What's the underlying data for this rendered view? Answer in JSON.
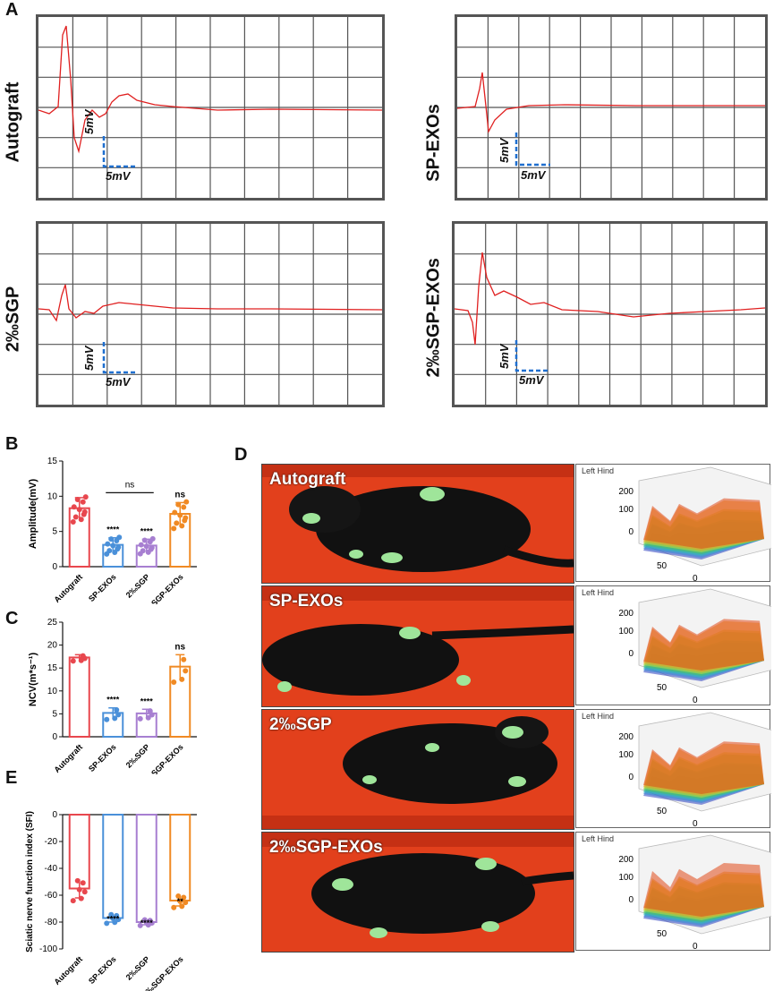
{
  "panels": {
    "A": "A",
    "B": "B",
    "C": "C",
    "D": "D",
    "E": "E"
  },
  "traces": [
    {
      "label": "Autograft",
      "scale_v": "5mV",
      "scale_h": "5mV"
    },
    {
      "label": "SP-EXOs",
      "scale_v": "5mV",
      "scale_h": "5mV"
    },
    {
      "label": "2‰SGP",
      "scale_v": "5mV",
      "scale_h": "5mV"
    },
    {
      "label": "2‰SGP-EXOs",
      "scale_v": "5mV",
      "scale_h": "5mV"
    }
  ],
  "colors": {
    "autograft": "#e8474e",
    "sp_exos": "#4a90d9",
    "sgp": "#a77fd1",
    "sgp_exos": "#f08a24",
    "trace": "#e02020",
    "scalebar": "#1f6fcf"
  },
  "chart_data": [
    {
      "type": "bar",
      "panel": "B",
      "categories": [
        "Autograft",
        "SP-EXOs",
        "2‰SGP",
        "2‰SGP-EXOs"
      ],
      "values": [
        8.3,
        3.1,
        3.0,
        7.5
      ],
      "errors": [
        1.5,
        1.0,
        0.9,
        1.6
      ],
      "significance": [
        "",
        "****",
        "****",
        "ns"
      ],
      "bracket_label": "ns",
      "ylabel": "Amplitude(mV)",
      "ylim": [
        0,
        15
      ],
      "yticks": [
        0,
        5,
        10,
        15
      ]
    },
    {
      "type": "bar",
      "panel": "C",
      "categories": [
        "Autograft",
        "SP-EXOs",
        "2‰SGP",
        "2‰SGP-EXOs"
      ],
      "values": [
        17.3,
        5.2,
        5.1,
        15.3
      ],
      "errors": [
        0.6,
        1.1,
        0.9,
        2.6
      ],
      "significance": [
        "",
        "****",
        "****",
        "ns"
      ],
      "ylabel": "NCV(m*s⁻¹)",
      "ylim": [
        0,
        25
      ],
      "yticks": [
        0,
        5,
        10,
        15,
        20,
        25
      ]
    },
    {
      "type": "bar",
      "panel": "E",
      "categories": [
        "Autograft",
        "SP-EXOs",
        "2‰SGP",
        "2‰SGP-EXOs"
      ],
      "values": [
        -55,
        -77,
        -80,
        -64
      ],
      "errors": [
        7,
        3,
        2,
        4
      ],
      "significance": [
        "",
        "****",
        "****",
        "**"
      ],
      "ylabel": "Sciatic nerve function index (SFI)",
      "ylim": [
        -100,
        0
      ],
      "yticks": [
        0,
        -20,
        -40,
        -60,
        -80,
        -100
      ]
    }
  ],
  "gait": [
    {
      "label": "Autograft",
      "plot_title": "Left Hind"
    },
    {
      "label": "SP-EXOs",
      "plot_title": "Left Hind"
    },
    {
      "label": "2‰SGP",
      "plot_title": "Left Hind"
    },
    {
      "label": "2‰SGP-EXOs",
      "plot_title": "Left Hind"
    }
  ],
  "plot3d_ticks": {
    "z": [
      "200",
      "100",
      "0"
    ],
    "x": [
      "50",
      "0"
    ],
    "y": "50"
  }
}
